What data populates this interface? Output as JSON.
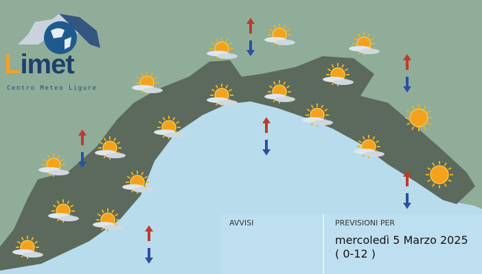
{
  "logo": {
    "brand_initial": "L",
    "brand_rest": "imet",
    "subtitle": "Centro Meteo Ligure"
  },
  "panel": {
    "warnings_label": "AVVISI",
    "forecast_label": "PREVISIONI PER",
    "date": "mercoledì 5 Marzo 2025",
    "time_range": "( 0-12 )"
  },
  "colors": {
    "background": "#8fad99",
    "sea": "#b8dcec",
    "land": "#5b6a5c",
    "arrow_up": "#c0392b",
    "arrow_down": "#2c4fa0"
  },
  "icons": {
    "sun_cloud_count": 16,
    "sun_count": 2,
    "temperature_arrow_pairs": 6
  }
}
